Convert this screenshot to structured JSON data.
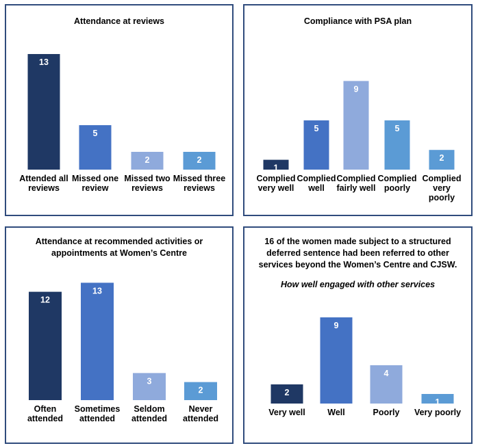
{
  "chart_data": [
    {
      "type": "bar",
      "title": "Attendance at reviews",
      "categories": [
        "Attended all reviews",
        "Missed one review",
        "Missed two reviews",
        "Missed three reviews"
      ],
      "category_lines": [
        [
          "Attended all",
          "reviews"
        ],
        [
          "Missed one",
          "review"
        ],
        [
          "Missed two",
          "reviews"
        ],
        [
          "Missed three",
          "reviews"
        ]
      ],
      "values": [
        13,
        5,
        2,
        2
      ],
      "colors": [
        "#1f3864",
        "#4472c4",
        "#8faadc",
        "#5b9bd5"
      ]
    },
    {
      "type": "bar",
      "title": "Compliance with PSA plan",
      "categories": [
        "Complied very well",
        "Complied well",
        "Complied fairly well",
        "Complied poorly",
        "Complied very poorly"
      ],
      "category_lines": [
        [
          "Complied",
          "very well"
        ],
        [
          "Complied",
          "well"
        ],
        [
          "Complied",
          "fairly well"
        ],
        [
          "Complied",
          "poorly"
        ],
        [
          "Complied",
          "very",
          "poorly"
        ]
      ],
      "values": [
        1,
        5,
        9,
        5,
        2
      ],
      "colors": [
        "#1f3864",
        "#4472c4",
        "#8faadc",
        "#5b9bd5",
        "#5b9bd5"
      ]
    },
    {
      "type": "bar",
      "title": "Attendance at recommended activities or appointments at Women’s Centre",
      "title_lines": [
        "Attendance at recommended activities or",
        "appointments at Women’s Centre"
      ],
      "categories": [
        "Often attended",
        "Sometimes attended",
        "Seldom attended",
        "Never attended"
      ],
      "category_lines": [
        [
          "Often",
          "attended"
        ],
        [
          "Sometimes",
          "attended"
        ],
        [
          "Seldom",
          "attended"
        ],
        [
          "Never",
          "attended"
        ]
      ],
      "values": [
        12,
        13,
        3,
        2
      ],
      "colors": [
        "#1f3864",
        "#4472c4",
        "#8faadc",
        "#5b9bd5"
      ]
    },
    {
      "type": "bar",
      "title": "16 of the women made subject to a structured deferred sentence had been referred to other services beyond the Women’s Centre and CJSW.",
      "title_lines": [
        "16 of the women made subject to a structured",
        "deferred sentence had been referred to other",
        "services beyond the Women’s Centre and CJSW."
      ],
      "subtitle": "How well engaged with other services",
      "categories": [
        "Very well",
        "Well",
        "Poorly",
        "Very poorly"
      ],
      "category_lines": [
        [
          "Very well"
        ],
        [
          "Well"
        ],
        [
          "Poorly"
        ],
        [
          "Very poorly"
        ]
      ],
      "values": [
        2,
        9,
        4,
        1
      ],
      "colors": [
        "#1f3864",
        "#4472c4",
        "#8faadc",
        "#5b9bd5"
      ]
    }
  ]
}
